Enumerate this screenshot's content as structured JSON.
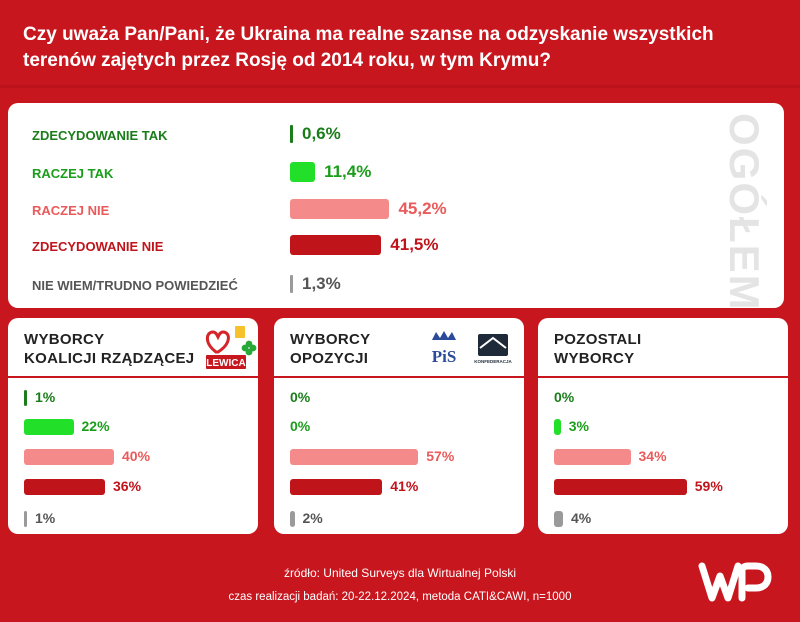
{
  "title": "Czy uważa Pan/Pani, że Ukraina ma realne szanse na odzyskanie wszystkich terenów zajętych przez Rosję od 2014 roku, w tym Krymu?",
  "overall": {
    "side_label": "OGÓŁEM",
    "rows": [
      {
        "label": "ZDECYDOWANIE TAK",
        "value_text": "0,6%",
        "value": 0.6,
        "color": "#1a7d1a",
        "bar_color": "#1a7d1a"
      },
      {
        "label": "RACZEJ TAK",
        "value_text": "11,4%",
        "value": 11.4,
        "color": "#1a9e1a",
        "bar_color": "#22e02a"
      },
      {
        "label": "RACZEJ NIE",
        "value_text": "45,2%",
        "value": 45.2,
        "color": "#ea5a5a",
        "bar_color": "#f48a8a"
      },
      {
        "label": "ZDECYDOWANIE NIE",
        "value_text": "41,5%",
        "value": 41.5,
        "color": "#c0141b",
        "bar_color": "#c0141b"
      },
      {
        "label": "NIE WIEM/TRUDNO POWIEDZIEĆ",
        "value_text": "1,3%",
        "value": 1.3,
        "color": "#555555",
        "bar_color": "#9a9a9a"
      }
    ]
  },
  "groups": [
    {
      "title_line1": "WYBORCY",
      "title_line2": "KOALICJI RZĄDZĄCEJ",
      "logo_text": "LEWICA",
      "values_text": [
        "1%",
        "22%",
        "40%",
        "36%",
        "1%"
      ],
      "values": [
        1,
        22,
        40,
        36,
        1
      ]
    },
    {
      "title_line1": "WYBORCY",
      "title_line2": "OPOZYCJI",
      "logo_text": "PiS",
      "logo_text2": "KONFEDERACJA",
      "values_text": [
        "0%",
        "0%",
        "57%",
        "41%",
        "2%"
      ],
      "values": [
        0,
        0,
        57,
        41,
        2
      ]
    },
    {
      "title_line1": "POZOSTALI",
      "title_line2": "WYBORCY",
      "values_text": [
        "0%",
        "3%",
        "34%",
        "59%",
        "4%"
      ],
      "values": [
        0,
        3,
        34,
        59,
        4
      ]
    }
  ],
  "footer": {
    "source": "źródło: United Surveys dla Wirtualnej Polski",
    "method": "czas realizacji badań: 20-22.12.2024, metoda CATI&CAWI, n=1000"
  },
  "colors": {
    "background": "#c8161e",
    "zdecydowanie_tak": "#1a7d1a",
    "raczej_tak": "#22e02a",
    "raczej_nie": "#f48a8a",
    "zdecydowanie_nie": "#c0141b",
    "nie_wiem": "#9a9a9a"
  },
  "chart_data": [
    {
      "type": "bar",
      "title": "",
      "categories": [
        "ZDECYDOWANIE TAK",
        "RACZEJ TAK",
        "RACZEJ NIE",
        "ZDECYDOWANIE NIE",
        "NIE WIEM/TRUDNO POWIEDZIEĆ"
      ],
      "values": [
        0.6,
        11.4,
        45.2,
        41.5,
        1.3
      ]
    },
    {
      "type": "bar",
      "title": "WYBORCY KOALICJI RZĄDZĄCEJ",
      "categories": [
        "ZDECYDOWANIE TAK",
        "RACZEJ TAK",
        "RACZEJ NIE",
        "ZDECYDOWANIE NIE",
        "NIE WIEM/TRUDNO POWIEDZIEĆ"
      ],
      "values": [
        1,
        22,
        40,
        36,
        1
      ]
    },
    {
      "type": "bar",
      "title": "WYBORCY OPOZYCJI",
      "categories": [
        "ZDECYDOWANIE TAK",
        "RACZEJ TAK",
        "RACZEJ NIE",
        "ZDECYDOWANIE NIE",
        "NIE WIEM/TRUDNO POWIEDZIEĆ"
      ],
      "values": [
        0,
        0,
        57,
        41,
        2
      ]
    },
    {
      "type": "bar",
      "title": "POZOSTALI WYBORCY",
      "categories": [
        "ZDECYDOWANIE TAK",
        "RACZEJ TAK",
        "RACZEJ NIE",
        "ZDECYDOWANIE NIE",
        "NIE WIEM/TRUDNO POWIEDZIEĆ"
      ],
      "values": [
        0,
        3,
        34,
        59,
        4
      ]
    }
  ]
}
